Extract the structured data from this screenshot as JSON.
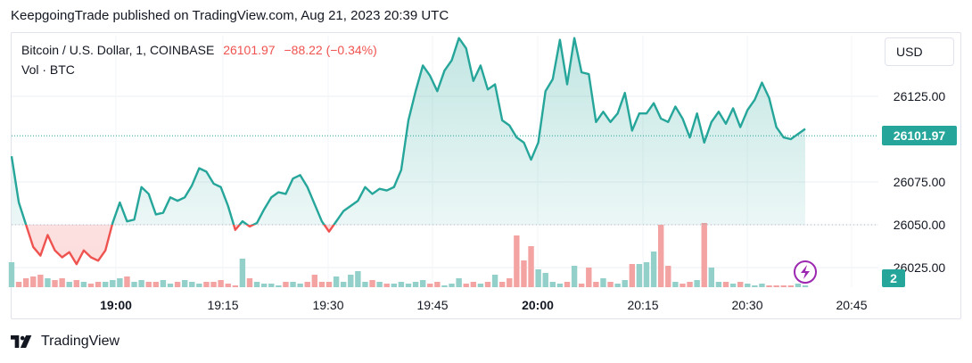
{
  "attribution": "KeepgoingTrade published on TradingView.com, Aug 21, 2023 20:39 UTC",
  "legend": {
    "symbol": "Bitcoin / U.S. Dollar, 1, COINBASE",
    "price": "26101.97",
    "change": "−88.22 (−0.34%)",
    "volume_label": "Vol · BTC"
  },
  "currency_button": "USD",
  "last_price_label": "26101.97",
  "volume_label_value": "2",
  "footer_brand": "TradingView",
  "colors": {
    "up": "#26a69a",
    "down": "#ef5350",
    "vol_up": "#92d0c9",
    "vol_down": "#f4a3a3",
    "bolt": "#9c27b0"
  },
  "chart_data": {
    "type": "area",
    "x_ticks": [
      "19:00",
      "19:15",
      "19:30",
      "19:45",
      "20:00",
      "20:15",
      "20:30",
      "20:45"
    ],
    "y_ticks": [
      26025,
      26050,
      26075,
      26125
    ],
    "ylim": [
      26018,
      26160
    ],
    "base_value": 26050,
    "price_series": [
      26090,
      26063,
      26050,
      26037,
      26032,
      26044,
      26035,
      26031,
      26034,
      26027,
      26035,
      26031,
      26029,
      26035,
      26051,
      26063,
      26052,
      26053,
      26072,
      26068,
      26056,
      26057,
      26066,
      26064,
      26066,
      26073,
      26083,
      26081,
      26074,
      26072,
      26061,
      26047,
      26052,
      26049,
      26051,
      26059,
      26066,
      26069,
      26068,
      26077,
      26079,
      26072,
      26062,
      26052,
      26046,
      26052,
      26058,
      26061,
      26064,
      26072,
      26068,
      26071,
      26070,
      26072,
      26082,
      26111,
      26128,
      26143,
      26137,
      26128,
      26140,
      26146,
      26159,
      26153,
      26134,
      26143,
      26129,
      26132,
      26111,
      26108,
      26101,
      26098,
      26088,
      26098,
      26128,
      26135,
      26158,
      26132,
      26159,
      26139,
      26138,
      26110,
      26116,
      26110,
      26115,
      26127,
      26105,
      26115,
      26115,
      26121,
      26112,
      26110,
      26119,
      26112,
      26101,
      26115,
      26098,
      26110,
      26116,
      26109,
      26118,
      26107,
      26117,
      26123,
      26133,
      26124,
      26107,
      26101,
      26100,
      26103,
      26106
    ],
    "volume_series": [
      14,
      3,
      5,
      6,
      7,
      5,
      4,
      5,
      3,
      4,
      3,
      2,
      3,
      3,
      4,
      5,
      6,
      3,
      4,
      3,
      3,
      4,
      2,
      3,
      4,
      3,
      2,
      3,
      3,
      4,
      2,
      1,
      16,
      5,
      3,
      2,
      2,
      1,
      3,
      3,
      2,
      3,
      7,
      3,
      3,
      6,
      3,
      7,
      9,
      3,
      4,
      3,
      2,
      2,
      3,
      2,
      3,
      4,
      2,
      3,
      1,
      2,
      5,
      2,
      3,
      2,
      3,
      7,
      3,
      5,
      2,
      3,
      4,
      3,
      2,
      3,
      2,
      3,
      3,
      2,
      2,
      3,
      5,
      3,
      2,
      4,
      3,
      2,
      3,
      4,
      3,
      2,
      3,
      2,
      3,
      4,
      2,
      2,
      3,
      3,
      2,
      3,
      2,
      1,
      2,
      1,
      1,
      1,
      1,
      2,
      1
    ],
    "volume_spikes": [
      {
        "index": 70,
        "value": 29
      },
      {
        "index": 71,
        "value": 15
      },
      {
        "index": 72,
        "value": 23
      },
      {
        "index": 73,
        "value": 10
      },
      {
        "index": 74,
        "value": 8
      },
      {
        "index": 78,
        "value": 12
      },
      {
        "index": 80,
        "value": 11
      },
      {
        "index": 86,
        "value": 13
      },
      {
        "index": 87,
        "value": 13
      },
      {
        "index": 88,
        "value": 14
      },
      {
        "index": 89,
        "value": 20
      },
      {
        "index": 90,
        "value": 35
      },
      {
        "index": 91,
        "value": 12
      },
      {
        "index": 96,
        "value": 36
      },
      {
        "index": 97,
        "value": 11
      }
    ]
  }
}
